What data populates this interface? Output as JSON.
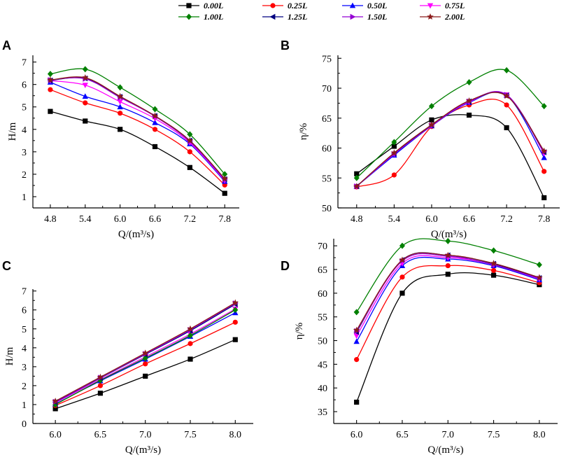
{
  "legend": {
    "entries": [
      {
        "label": "0.00L",
        "color": "#000000",
        "marker": "square"
      },
      {
        "label": "0.25L",
        "color": "#ff0000",
        "marker": "circle"
      },
      {
        "label": "0.50L",
        "color": "#0000ff",
        "marker": "triangle-up"
      },
      {
        "label": "0.75L",
        "color": "#ff00ff",
        "marker": "triangle-down"
      },
      {
        "label": "1.00L",
        "color": "#008000",
        "marker": "diamond"
      },
      {
        "label": "1.25L",
        "color": "#000080",
        "marker": "triangle-left"
      },
      {
        "label": "1.50L",
        "color": "#9400d3",
        "marker": "triangle-right"
      },
      {
        "label": "2.00L",
        "color": "#8b1a1a",
        "marker": "star"
      }
    ]
  },
  "chart_data": [
    {
      "panel": "A",
      "type": "line",
      "xlabel": "Q/(m³/s)",
      "ylabel": "H/m",
      "x": [
        4.8,
        5.4,
        6.0,
        6.6,
        7.2,
        7.8
      ],
      "xticks": [
        "4.8",
        "5.4",
        "6.0",
        "6.6",
        "7.2",
        "7.8"
      ],
      "yticks": [
        "1",
        "2",
        "3",
        "4",
        "5",
        "6",
        "7"
      ],
      "xlim": [
        4.5,
        8.05
      ],
      "ylim": [
        0.5,
        7.3
      ],
      "series": [
        {
          "name": "0.00L",
          "values": [
            4.8,
            4.37,
            4.0,
            3.23,
            2.3,
            1.15
          ]
        },
        {
          "name": "0.25L",
          "values": [
            5.77,
            5.18,
            4.72,
            4.0,
            3.0,
            1.52
          ]
        },
        {
          "name": "0.50L",
          "values": [
            6.1,
            5.47,
            5.0,
            4.3,
            3.35,
            1.68
          ]
        },
        {
          "name": "0.75L",
          "values": [
            6.17,
            5.97,
            5.23,
            4.48,
            3.4,
            1.72
          ]
        },
        {
          "name": "1.00L",
          "values": [
            6.47,
            6.68,
            5.87,
            4.9,
            3.78,
            2.0
          ]
        },
        {
          "name": "1.25L",
          "values": [
            6.18,
            6.27,
            5.45,
            4.6,
            3.5,
            1.78
          ]
        },
        {
          "name": "1.50L",
          "values": [
            6.2,
            6.25,
            5.42,
            4.58,
            3.45,
            1.75
          ]
        },
        {
          "name": "2.00L",
          "values": [
            6.2,
            6.3,
            5.47,
            4.6,
            3.5,
            1.8
          ]
        }
      ]
    },
    {
      "panel": "B",
      "type": "line",
      "xlabel": "Q/(m³/s)",
      "ylabel": "η/%",
      "x": [
        4.8,
        5.4,
        6.0,
        6.6,
        7.2,
        7.8
      ],
      "xticks": [
        "4.8",
        "5.4",
        "6.0",
        "6.6",
        "7.2",
        "7.8"
      ],
      "yticks": [
        "50",
        "55",
        "60",
        "65",
        "70",
        "75"
      ],
      "xlim": [
        4.5,
        8.05
      ],
      "ylim": [
        50,
        75.5
      ],
      "series": [
        {
          "name": "0.00L",
          "values": [
            55.7,
            60.3,
            64.7,
            65.5,
            63.4,
            51.7
          ]
        },
        {
          "name": "0.25L",
          "values": [
            53.5,
            55.5,
            63.6,
            67.2,
            67.2,
            56.1
          ]
        },
        {
          "name": "0.50L",
          "values": [
            53.6,
            58.8,
            63.7,
            67.6,
            68.8,
            58.4
          ]
        },
        {
          "name": "0.75L",
          "values": [
            53.6,
            59.0,
            63.8,
            67.7,
            68.9,
            59.1
          ]
        },
        {
          "name": "1.00L",
          "values": [
            55.0,
            61.0,
            67.0,
            71.0,
            73.0,
            67.0
          ]
        },
        {
          "name": "1.25L",
          "values": [
            53.6,
            59.1,
            63.8,
            67.8,
            68.8,
            59.3
          ]
        },
        {
          "name": "1.50L",
          "values": [
            53.6,
            59.0,
            63.7,
            67.8,
            68.9,
            59.4
          ]
        },
        {
          "name": "2.00L",
          "values": [
            53.6,
            59.2,
            63.9,
            67.9,
            68.7,
            59.5
          ]
        }
      ]
    },
    {
      "panel": "C",
      "type": "line",
      "xlabel": "Q/(m³/s)",
      "ylabel": "H/m",
      "x": [
        6.0,
        6.5,
        7.0,
        7.5,
        8.0
      ],
      "xticks": [
        "6.0",
        "6.5",
        "7.0",
        "7.5",
        "8.0"
      ],
      "yticks": [
        "0",
        "1",
        "2",
        "3",
        "4",
        "5",
        "6",
        "7"
      ],
      "xlim": [
        5.75,
        8.2
      ],
      "ylim": [
        0,
        7.1
      ],
      "series": [
        {
          "name": "0.00L",
          "values": [
            0.78,
            1.6,
            2.5,
            3.4,
            4.43
          ]
        },
        {
          "name": "0.25L",
          "values": [
            0.95,
            2.0,
            3.15,
            4.22,
            5.35
          ]
        },
        {
          "name": "0.50L",
          "values": [
            1.03,
            2.25,
            3.4,
            4.6,
            5.85
          ]
        },
        {
          "name": "0.75L",
          "values": [
            1.1,
            2.32,
            3.52,
            4.72,
            6.05
          ]
        },
        {
          "name": "1.00L",
          "values": [
            1.0,
            2.28,
            3.45,
            4.65,
            6.0
          ]
        },
        {
          "name": "1.25L",
          "values": [
            1.13,
            2.4,
            3.65,
            4.9,
            6.3
          ]
        },
        {
          "name": "1.50L",
          "values": [
            1.15,
            2.42,
            3.68,
            4.95,
            6.35
          ]
        },
        {
          "name": "2.00L",
          "values": [
            1.18,
            2.45,
            3.72,
            5.0,
            6.38
          ]
        }
      ]
    },
    {
      "panel": "D",
      "type": "line",
      "xlabel": "Q/(m³/s)",
      "ylabel": "η/%",
      "x": [
        6.0,
        6.5,
        7.0,
        7.5,
        8.0
      ],
      "xticks": [
        "6.0",
        "6.5",
        "7.0",
        "7.5",
        "8.0"
      ],
      "yticks": [
        "35",
        "40",
        "45",
        "50",
        "55",
        "60",
        "65",
        "70"
      ],
      "xlim": [
        5.75,
        8.2
      ],
      "ylim": [
        32.5,
        71.5
      ],
      "series": [
        {
          "name": "0.00L",
          "values": [
            37.0,
            60.0,
            64.0,
            63.8,
            61.8
          ]
        },
        {
          "name": "0.25L",
          "values": [
            46.0,
            63.4,
            65.8,
            64.8,
            62.2
          ]
        },
        {
          "name": "0.50L",
          "values": [
            49.8,
            65.8,
            67.2,
            65.8,
            62.8
          ]
        },
        {
          "name": "0.75L",
          "values": [
            51.0,
            66.3,
            67.5,
            66.0,
            63.0
          ]
        },
        {
          "name": "1.00L",
          "values": [
            56.0,
            70.0,
            71.0,
            69.0,
            66.0
          ]
        },
        {
          "name": "1.25L",
          "values": [
            51.8,
            67.0,
            68.0,
            66.2,
            63.2
          ]
        },
        {
          "name": "1.50L",
          "values": [
            52.0,
            66.8,
            67.8,
            66.0,
            63.1
          ]
        },
        {
          "name": "2.00L",
          "values": [
            52.2,
            67.0,
            68.0,
            66.3,
            63.3
          ]
        }
      ]
    }
  ]
}
